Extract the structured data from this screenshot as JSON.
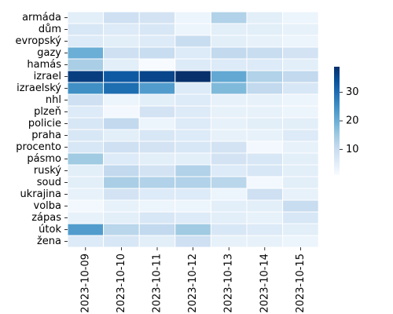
{
  "chart_data": {
    "type": "heatmap",
    "title": "",
    "xlabel": "",
    "ylabel": "",
    "x": [
      "2023-10-09",
      "2023-10-10",
      "2023-10-11",
      "2023-10-12",
      "2023-10-13",
      "2023-10-14",
      "2023-10-15"
    ],
    "y": [
      "armáda",
      "dům",
      "evropský",
      "gazy",
      "hamás",
      "izrael",
      "izraelský",
      "nhl",
      "plzeň",
      "policie",
      "praha",
      "procento",
      "pásmo",
      "ruský",
      "soud",
      "ukrajina",
      "volba",
      "zápas",
      "útok",
      "žena"
    ],
    "values": [
      [
        5,
        9,
        8,
        3,
        13,
        5,
        3
      ],
      [
        7,
        6,
        7,
        3,
        5,
        5,
        4
      ],
      [
        6,
        5,
        6,
        10,
        5,
        4,
        3
      ],
      [
        20,
        9,
        10,
        6,
        11,
        10,
        8
      ],
      [
        14,
        5,
        1,
        6,
        6,
        6,
        5
      ],
      [
        37,
        33,
        36,
        39,
        21,
        13,
        11
      ],
      [
        25,
        30,
        23,
        6,
        18,
        11,
        7
      ],
      [
        9,
        3,
        5,
        6,
        4,
        4,
        3
      ],
      [
        6,
        2,
        8,
        6,
        4,
        4,
        3
      ],
      [
        7,
        11,
        3,
        6,
        4,
        5,
        5
      ],
      [
        7,
        5,
        7,
        6,
        4,
        4,
        6
      ],
      [
        7,
        9,
        8,
        7,
        8,
        2,
        4
      ],
      [
        15,
        6,
        5,
        5,
        8,
        7,
        5
      ],
      [
        5,
        11,
        8,
        13,
        6,
        7,
        5
      ],
      [
        5,
        14,
        13,
        13,
        12,
        2,
        5
      ],
      [
        4,
        8,
        6,
        6,
        3,
        9,
        4
      ],
      [
        2,
        4,
        3,
        3,
        5,
        5,
        10
      ],
      [
        4,
        5,
        7,
        6,
        5,
        4,
        7
      ],
      [
        23,
        12,
        11,
        15,
        7,
        6,
        5
      ],
      [
        6,
        7,
        5,
        9,
        4,
        4,
        3
      ]
    ],
    "colorbar": {
      "min": 1,
      "max": 39,
      "ticks": [
        10,
        20,
        30
      ],
      "colormap": "Blues",
      "low_color": "#f7fbff",
      "high_color": "#08306b"
    },
    "grid": false,
    "cell_border_color": "#ffffff"
  }
}
